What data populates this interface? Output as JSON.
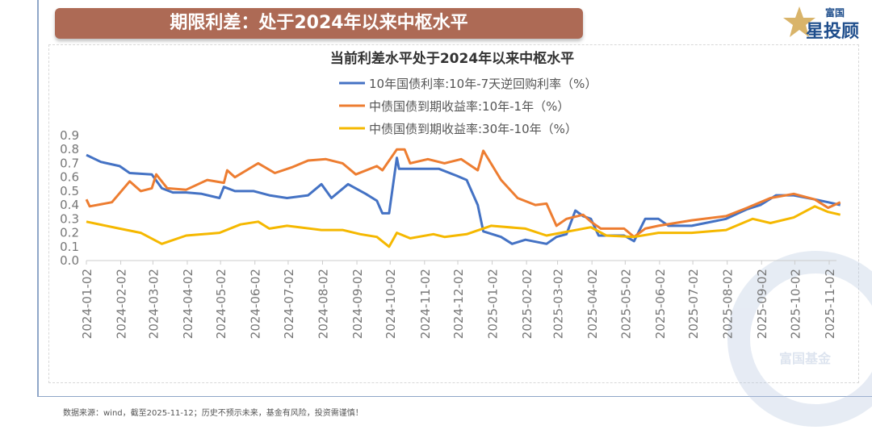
{
  "header": {
    "title": "期限利差：处于2024年以来中枢水平",
    "logo_text": [
      "富国",
      "星投顾"
    ]
  },
  "footer": {
    "note": "数据来源：wind，截至2025-11-12；历史不预示未来，基金有风险，投资需谨慎！"
  },
  "watermark": {
    "text": "富国基金"
  },
  "chart_data": {
    "type": "line",
    "title": "当前利差水平处于2024年以来中枢水平",
    "xlabel": "",
    "ylabel": "",
    "ylim": [
      0,
      0.9
    ],
    "yticks": [
      "0.0",
      "0.1",
      "0.2",
      "0.3",
      "0.4",
      "0.5",
      "0.6",
      "0.7",
      "0.8",
      "0.9"
    ],
    "xticks": [
      "2024-01-02",
      "2024-02-02",
      "2024-03-02",
      "2024-04-02",
      "2024-05-02",
      "2024-06-02",
      "2024-07-02",
      "2024-08-02",
      "2024-09-02",
      "2024-10-02",
      "2024-11-02",
      "2024-12-02",
      "2025-01-02",
      "2025-02-02",
      "2025-03-02",
      "2025-04-02",
      "2025-05-02",
      "2025-06-02",
      "2025-07-02",
      "2025-08-02",
      "2025-09-02",
      "2025-10-02",
      "2025-11-02"
    ],
    "grid": false,
    "legend_position": "top-center",
    "series": [
      {
        "name": "10年国债利率:10年-7天逆回购利率（%）",
        "color": "#4472c4",
        "points": [
          [
            "2024-01-02",
            0.76
          ],
          [
            "2024-01-15",
            0.71
          ],
          [
            "2024-02-01",
            0.68
          ],
          [
            "2024-02-10",
            0.63
          ],
          [
            "2024-03-01",
            0.62
          ],
          [
            "2024-03-10",
            0.52
          ],
          [
            "2024-03-20",
            0.49
          ],
          [
            "2024-04-01",
            0.49
          ],
          [
            "2024-04-15",
            0.48
          ],
          [
            "2024-05-01",
            0.45
          ],
          [
            "2024-05-05",
            0.53
          ],
          [
            "2024-05-15",
            0.5
          ],
          [
            "2024-06-01",
            0.5
          ],
          [
            "2024-06-15",
            0.47
          ],
          [
            "2024-07-01",
            0.45
          ],
          [
            "2024-07-20",
            0.47
          ],
          [
            "2024-08-01",
            0.55
          ],
          [
            "2024-08-10",
            0.45
          ],
          [
            "2024-08-25",
            0.55
          ],
          [
            "2024-09-10",
            0.48
          ],
          [
            "2024-09-20",
            0.43
          ],
          [
            "2024-09-25",
            0.34
          ],
          [
            "2024-10-01",
            0.34
          ],
          [
            "2024-10-08",
            0.74
          ],
          [
            "2024-10-10",
            0.66
          ],
          [
            "2024-11-01",
            0.66
          ],
          [
            "2024-11-15",
            0.66
          ],
          [
            "2024-12-01",
            0.61
          ],
          [
            "2024-12-10",
            0.58
          ],
          [
            "2024-12-20",
            0.4
          ],
          [
            "2024-12-25",
            0.21
          ],
          [
            "2025-01-10",
            0.17
          ],
          [
            "2025-01-20",
            0.12
          ],
          [
            "2025-02-01",
            0.15
          ],
          [
            "2025-02-20",
            0.12
          ],
          [
            "2025-03-01",
            0.17
          ],
          [
            "2025-03-10",
            0.19
          ],
          [
            "2025-03-18",
            0.36
          ],
          [
            "2025-03-25",
            0.32
          ],
          [
            "2025-04-01",
            0.3
          ],
          [
            "2025-04-08",
            0.18
          ],
          [
            "2025-05-01",
            0.18
          ],
          [
            "2025-05-10",
            0.14
          ],
          [
            "2025-05-20",
            0.3
          ],
          [
            "2025-06-01",
            0.3
          ],
          [
            "2025-06-10",
            0.25
          ],
          [
            "2025-07-01",
            0.25
          ],
          [
            "2025-08-01",
            0.3
          ],
          [
            "2025-08-20",
            0.37
          ],
          [
            "2025-09-01",
            0.4
          ],
          [
            "2025-09-15",
            0.47
          ],
          [
            "2025-10-01",
            0.47
          ],
          [
            "2025-10-20",
            0.44
          ],
          [
            "2025-11-01",
            0.42
          ],
          [
            "2025-11-12",
            0.4
          ]
        ]
      },
      {
        "name": "中债国债到期收益率:10年-1年（%）",
        "color": "#ed7d31",
        "points": [
          [
            "2024-01-02",
            0.44
          ],
          [
            "2024-01-05",
            0.39
          ],
          [
            "2024-01-25",
            0.42
          ],
          [
            "2024-02-10",
            0.57
          ],
          [
            "2024-02-20",
            0.5
          ],
          [
            "2024-03-01",
            0.52
          ],
          [
            "2024-03-05",
            0.62
          ],
          [
            "2024-03-15",
            0.52
          ],
          [
            "2024-04-01",
            0.51
          ],
          [
            "2024-04-20",
            0.58
          ],
          [
            "2024-05-05",
            0.56
          ],
          [
            "2024-05-08",
            0.65
          ],
          [
            "2024-05-15",
            0.6
          ],
          [
            "2024-06-05",
            0.7
          ],
          [
            "2024-06-20",
            0.63
          ],
          [
            "2024-07-05",
            0.67
          ],
          [
            "2024-07-20",
            0.72
          ],
          [
            "2024-08-05",
            0.73
          ],
          [
            "2024-08-20",
            0.7
          ],
          [
            "2024-09-01",
            0.62
          ],
          [
            "2024-09-20",
            0.68
          ],
          [
            "2024-09-25",
            0.65
          ],
          [
            "2024-10-08",
            0.8
          ],
          [
            "2024-10-15",
            0.8
          ],
          [
            "2024-10-20",
            0.7
          ],
          [
            "2024-11-05",
            0.73
          ],
          [
            "2024-11-20",
            0.7
          ],
          [
            "2024-12-05",
            0.73
          ],
          [
            "2024-12-20",
            0.65
          ],
          [
            "2024-12-25",
            0.79
          ],
          [
            "2025-01-10",
            0.58
          ],
          [
            "2025-01-25",
            0.45
          ],
          [
            "2025-02-10",
            0.4
          ],
          [
            "2025-02-20",
            0.41
          ],
          [
            "2025-03-01",
            0.25
          ],
          [
            "2025-03-10",
            0.3
          ],
          [
            "2025-03-25",
            0.33
          ],
          [
            "2025-04-01",
            0.28
          ],
          [
            "2025-04-10",
            0.23
          ],
          [
            "2025-05-01",
            0.23
          ],
          [
            "2025-05-10",
            0.17
          ],
          [
            "2025-05-20",
            0.23
          ],
          [
            "2025-06-01",
            0.25
          ],
          [
            "2025-07-01",
            0.29
          ],
          [
            "2025-08-01",
            0.32
          ],
          [
            "2025-08-20",
            0.38
          ],
          [
            "2025-09-10",
            0.45
          ],
          [
            "2025-10-01",
            0.48
          ],
          [
            "2025-10-20",
            0.44
          ],
          [
            "2025-11-01",
            0.38
          ],
          [
            "2025-11-12",
            0.42
          ]
        ]
      },
      {
        "name": "中债国债到期收益率:30年-10年（%）",
        "color": "#f5b800",
        "points": [
          [
            "2024-01-02",
            0.28
          ],
          [
            "2024-02-01",
            0.23
          ],
          [
            "2024-02-20",
            0.2
          ],
          [
            "2024-03-10",
            0.12
          ],
          [
            "2024-04-01",
            0.18
          ],
          [
            "2024-05-01",
            0.2
          ],
          [
            "2024-05-20",
            0.26
          ],
          [
            "2024-06-05",
            0.28
          ],
          [
            "2024-06-15",
            0.23
          ],
          [
            "2024-07-01",
            0.25
          ],
          [
            "2024-08-01",
            0.22
          ],
          [
            "2024-08-20",
            0.22
          ],
          [
            "2024-09-05",
            0.19
          ],
          [
            "2024-09-20",
            0.17
          ],
          [
            "2024-10-01",
            0.1
          ],
          [
            "2024-10-08",
            0.2
          ],
          [
            "2024-10-20",
            0.16
          ],
          [
            "2024-11-10",
            0.19
          ],
          [
            "2024-11-20",
            0.17
          ],
          [
            "2024-12-10",
            0.19
          ],
          [
            "2025-01-01",
            0.25
          ],
          [
            "2025-02-01",
            0.23
          ],
          [
            "2025-02-20",
            0.18
          ],
          [
            "2025-03-05",
            0.2
          ],
          [
            "2025-04-01",
            0.24
          ],
          [
            "2025-04-15",
            0.18
          ],
          [
            "2025-05-10",
            0.17
          ],
          [
            "2025-06-01",
            0.2
          ],
          [
            "2025-07-01",
            0.2
          ],
          [
            "2025-08-01",
            0.22
          ],
          [
            "2025-08-25",
            0.3
          ],
          [
            "2025-09-10",
            0.27
          ],
          [
            "2025-10-01",
            0.31
          ],
          [
            "2025-10-20",
            0.39
          ],
          [
            "2025-11-01",
            0.35
          ],
          [
            "2025-11-12",
            0.33
          ]
        ]
      }
    ]
  }
}
